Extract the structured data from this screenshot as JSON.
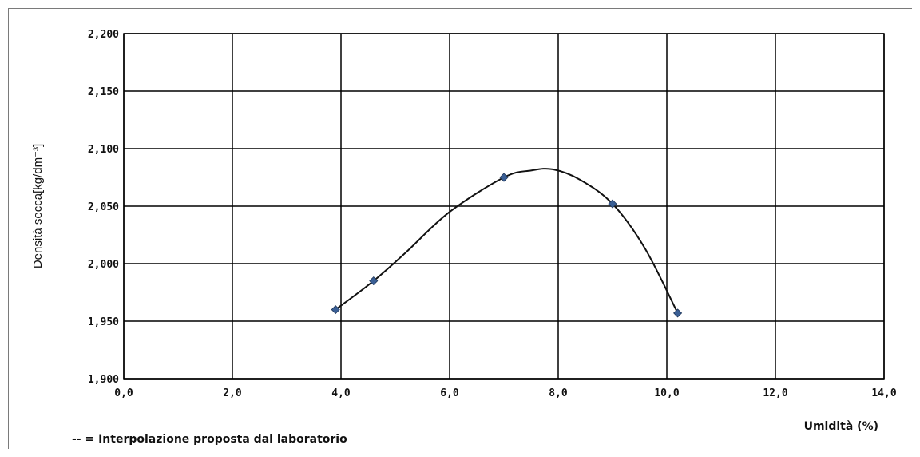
{
  "chart_data": {
    "type": "scatter",
    "title": "",
    "xlabel": "Umidità (%)",
    "ylabel": "Densità secca[kg/dm⁻³]",
    "xlim": [
      0,
      14
    ],
    "ylim": [
      1.9,
      2.2
    ],
    "x_ticks": [
      "0,0",
      "2,0",
      "4,0",
      "6,0",
      "8,0",
      "10,0",
      "12,0",
      "14,0"
    ],
    "y_ticks": [
      "1,900",
      "1,950",
      "2,000",
      "2,050",
      "2,100",
      "2,150",
      "2,200"
    ],
    "grid": true,
    "series": [
      {
        "x": [
          3.9,
          4.6,
          7.0,
          9.0,
          10.2
        ],
        "y": [
          1.96,
          1.985,
          2.075,
          2.052,
          1.957
        ],
        "marker": "diamond",
        "color": "#3a5f95"
      }
    ],
    "interpolation_curve": {
      "x": [
        3.9,
        4.6,
        5.2,
        6.0,
        7.0,
        7.5,
        7.9,
        8.4,
        9.0,
        9.6,
        10.2
      ],
      "y": [
        1.96,
        1.985,
        2.01,
        2.045,
        2.075,
        2.081,
        2.082,
        2.073,
        2.052,
        2.013,
        1.957
      ],
      "color": "#111111"
    },
    "note": "-- = Interpolazione proposta dal laboratorio"
  }
}
